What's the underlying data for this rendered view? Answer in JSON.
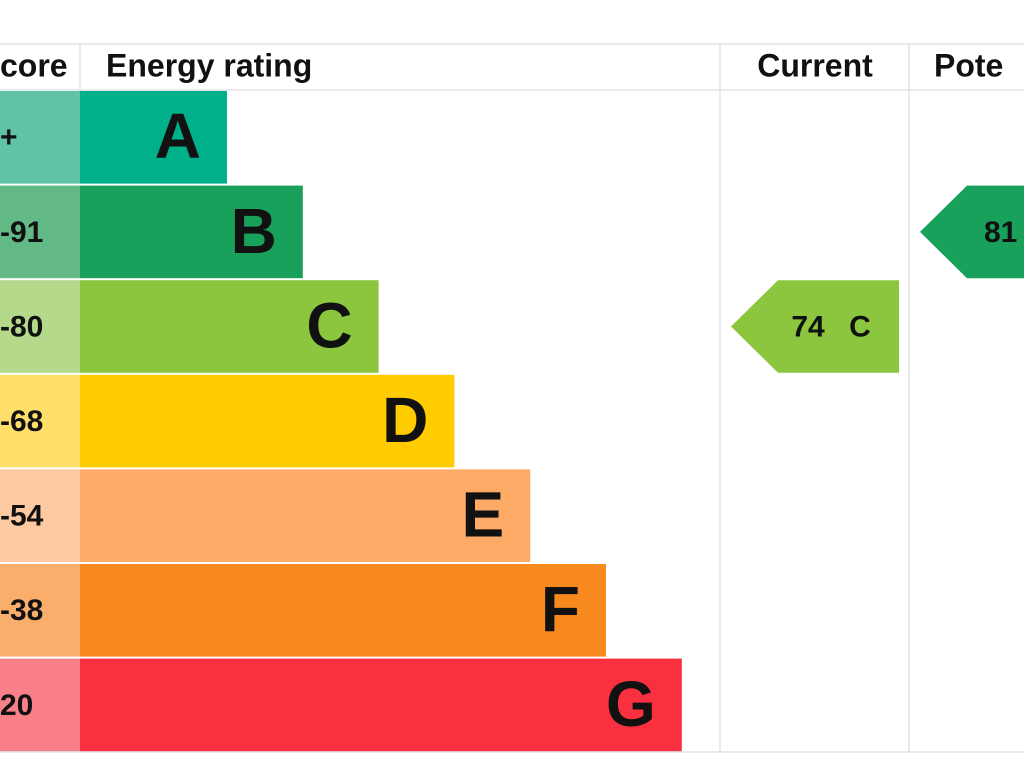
{
  "header": {
    "score": "core",
    "rating": "Energy rating",
    "current": "Current",
    "potential": "Pote"
  },
  "bands": [
    {
      "score": "+",
      "letter": "A",
      "color": "#00b08a",
      "light": "#5fc3a8"
    },
    {
      "score": "-91",
      "letter": "B",
      "color": "#19a05a",
      "light": "#63b985"
    },
    {
      "score": "-80",
      "letter": "C",
      "color": "#8cc63f",
      "light": "#b4d98a"
    },
    {
      "score": "-68",
      "letter": "D",
      "color": "#ffcc00",
      "light": "#ffdf6a"
    },
    {
      "score": "-54",
      "letter": "E",
      "color": "#fcaa65",
      "light": "#fdc9a0"
    },
    {
      "score": "-38",
      "letter": "F",
      "color": "#f7891f",
      "light": "#f9ae6b"
    },
    {
      "score": "20",
      "letter": "G",
      "color": "#f9303f",
      "light": "#f97f89"
    }
  ],
  "current": {
    "value": "74",
    "letter": "C",
    "band": 2
  },
  "potential": {
    "value": "81",
    "band": 1
  }
}
